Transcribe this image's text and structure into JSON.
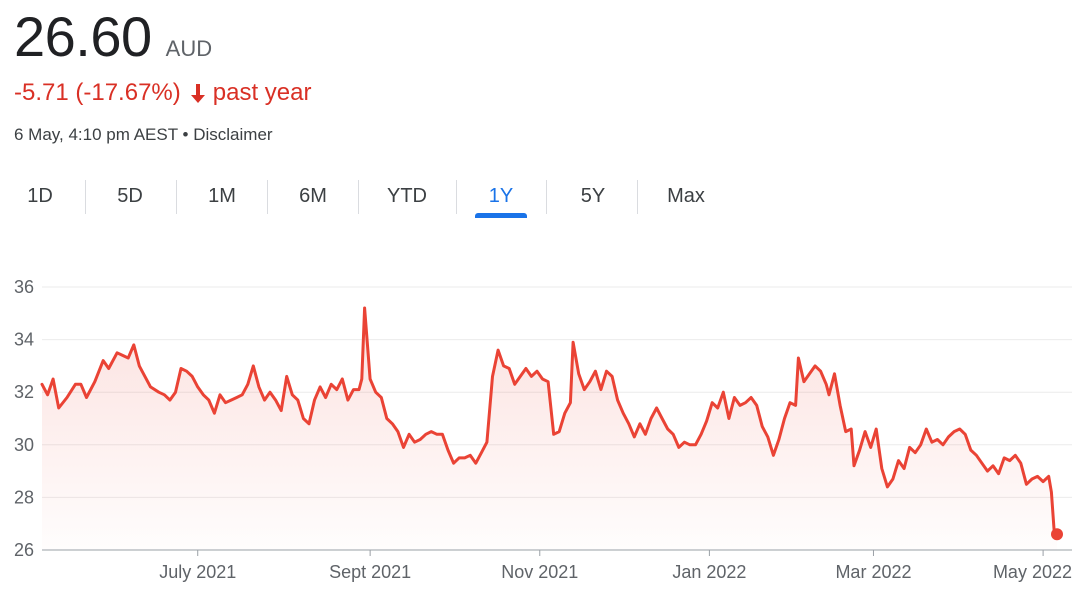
{
  "quote": {
    "price": "26.60",
    "currency": "AUD",
    "change": "-5.71 (-17.67%)",
    "change_period": "past year",
    "timestamp": "6 May, 4:10 pm AEST",
    "separator": "•",
    "disclaimer": "Disclaimer"
  },
  "colors": {
    "negative": "#d93025",
    "line": "#ea4335",
    "active_tab": "#1a73e8",
    "text": "#202124",
    "muted": "#5f6368"
  },
  "tabs": [
    {
      "label": "1D",
      "active": false
    },
    {
      "label": "5D",
      "active": false
    },
    {
      "label": "1M",
      "active": false
    },
    {
      "label": "6M",
      "active": false
    },
    {
      "label": "YTD",
      "active": false
    },
    {
      "label": "1Y",
      "active": true
    },
    {
      "label": "5Y",
      "active": false
    },
    {
      "label": "Max",
      "active": false
    }
  ],
  "icons": {
    "change_arrow": "arrow-down-icon"
  },
  "chart_data": {
    "type": "area",
    "title": "",
    "xlabel": "",
    "ylabel": "",
    "ylim": [
      26,
      36
    ],
    "yticks": [
      26,
      28,
      30,
      32,
      34,
      36
    ],
    "xlim": [
      "2021-05-06",
      "2022-05-06"
    ],
    "xticks": [
      {
        "date": "2021-07-01",
        "label": "July 2021"
      },
      {
        "date": "2021-09-01",
        "label": "Sept 2021"
      },
      {
        "date": "2021-11-01",
        "label": "Nov 2021"
      },
      {
        "date": "2022-01-01",
        "label": "Jan 2022"
      },
      {
        "date": "2022-03-01",
        "label": "Mar 2022"
      },
      {
        "date": "2022-05-01",
        "label": "May 2022"
      }
    ],
    "grid": true,
    "series": [
      {
        "points": [
          [
            "2021-05-06",
            32.3
          ],
          [
            "2021-05-08",
            31.9
          ],
          [
            "2021-05-10",
            32.5
          ],
          [
            "2021-05-12",
            31.4
          ],
          [
            "2021-05-15",
            31.8
          ],
          [
            "2021-05-18",
            32.3
          ],
          [
            "2021-05-20",
            32.3
          ],
          [
            "2021-05-22",
            31.8
          ],
          [
            "2021-05-25",
            32.4
          ],
          [
            "2021-05-28",
            33.2
          ],
          [
            "2021-05-30",
            32.9
          ],
          [
            "2021-06-02",
            33.5
          ],
          [
            "2021-06-04",
            33.4
          ],
          [
            "2021-06-06",
            33.3
          ],
          [
            "2021-06-08",
            33.8
          ],
          [
            "2021-06-10",
            33.0
          ],
          [
            "2021-06-12",
            32.6
          ],
          [
            "2021-06-14",
            32.2
          ],
          [
            "2021-06-17",
            32.0
          ],
          [
            "2021-06-19",
            31.9
          ],
          [
            "2021-06-21",
            31.7
          ],
          [
            "2021-06-23",
            32.0
          ],
          [
            "2021-06-25",
            32.9
          ],
          [
            "2021-06-27",
            32.8
          ],
          [
            "2021-06-29",
            32.6
          ],
          [
            "2021-07-01",
            32.2
          ],
          [
            "2021-07-03",
            31.9
          ],
          [
            "2021-07-05",
            31.7
          ],
          [
            "2021-07-07",
            31.2
          ],
          [
            "2021-07-09",
            31.9
          ],
          [
            "2021-07-11",
            31.6
          ],
          [
            "2021-07-13",
            31.7
          ],
          [
            "2021-07-15",
            31.8
          ],
          [
            "2021-07-17",
            31.9
          ],
          [
            "2021-07-19",
            32.3
          ],
          [
            "2021-07-21",
            33.0
          ],
          [
            "2021-07-23",
            32.2
          ],
          [
            "2021-07-25",
            31.7
          ],
          [
            "2021-07-27",
            32.0
          ],
          [
            "2021-07-29",
            31.7
          ],
          [
            "2021-07-31",
            31.3
          ],
          [
            "2021-08-02",
            32.6
          ],
          [
            "2021-08-04",
            31.9
          ],
          [
            "2021-08-06",
            31.7
          ],
          [
            "2021-08-08",
            31.0
          ],
          [
            "2021-08-10",
            30.8
          ],
          [
            "2021-08-12",
            31.7
          ],
          [
            "2021-08-14",
            32.2
          ],
          [
            "2021-08-16",
            31.8
          ],
          [
            "2021-08-18",
            32.3
          ],
          [
            "2021-08-20",
            32.1
          ],
          [
            "2021-08-22",
            32.5
          ],
          [
            "2021-08-24",
            31.7
          ],
          [
            "2021-08-26",
            32.1
          ],
          [
            "2021-08-28",
            32.1
          ],
          [
            "2021-08-29",
            32.5
          ],
          [
            "2021-08-30",
            35.2
          ],
          [
            "2021-09-01",
            32.5
          ],
          [
            "2021-09-03",
            32.0
          ],
          [
            "2021-09-05",
            31.8
          ],
          [
            "2021-09-07",
            31.0
          ],
          [
            "2021-09-09",
            30.8
          ],
          [
            "2021-09-11",
            30.5
          ],
          [
            "2021-09-13",
            29.9
          ],
          [
            "2021-09-15",
            30.4
          ],
          [
            "2021-09-17",
            30.1
          ],
          [
            "2021-09-19",
            30.2
          ],
          [
            "2021-09-21",
            30.4
          ],
          [
            "2021-09-23",
            30.5
          ],
          [
            "2021-09-25",
            30.4
          ],
          [
            "2021-09-27",
            30.4
          ],
          [
            "2021-09-29",
            29.8
          ],
          [
            "2021-10-01",
            29.3
          ],
          [
            "2021-10-03",
            29.5
          ],
          [
            "2021-10-05",
            29.5
          ],
          [
            "2021-10-07",
            29.6
          ],
          [
            "2021-10-09",
            29.3
          ],
          [
            "2021-10-11",
            29.7
          ],
          [
            "2021-10-13",
            30.1
          ],
          [
            "2021-10-15",
            32.6
          ],
          [
            "2021-10-17",
            33.6
          ],
          [
            "2021-10-19",
            33.0
          ],
          [
            "2021-10-21",
            32.9
          ],
          [
            "2021-10-23",
            32.3
          ],
          [
            "2021-10-25",
            32.6
          ],
          [
            "2021-10-27",
            32.9
          ],
          [
            "2021-10-29",
            32.6
          ],
          [
            "2021-10-31",
            32.8
          ],
          [
            "2021-11-02",
            32.5
          ],
          [
            "2021-11-04",
            32.4
          ],
          [
            "2021-11-06",
            30.4
          ],
          [
            "2021-11-08",
            30.5
          ],
          [
            "2021-11-10",
            31.2
          ],
          [
            "2021-11-12",
            31.6
          ],
          [
            "2021-11-13",
            33.9
          ],
          [
            "2021-11-15",
            32.7
          ],
          [
            "2021-11-17",
            32.1
          ],
          [
            "2021-11-19",
            32.4
          ],
          [
            "2021-11-21",
            32.8
          ],
          [
            "2021-11-23",
            32.1
          ],
          [
            "2021-11-25",
            32.8
          ],
          [
            "2021-11-27",
            32.6
          ],
          [
            "2021-11-29",
            31.7
          ],
          [
            "2021-12-01",
            31.2
          ],
          [
            "2021-12-03",
            30.8
          ],
          [
            "2021-12-05",
            30.3
          ],
          [
            "2021-12-07",
            30.8
          ],
          [
            "2021-12-09",
            30.4
          ],
          [
            "2021-12-11",
            31.0
          ],
          [
            "2021-12-13",
            31.4
          ],
          [
            "2021-12-15",
            31.0
          ],
          [
            "2021-12-17",
            30.6
          ],
          [
            "2021-12-19",
            30.4
          ],
          [
            "2021-12-21",
            29.9
          ],
          [
            "2021-12-23",
            30.1
          ],
          [
            "2021-12-25",
            30.0
          ],
          [
            "2021-12-27",
            30.0
          ],
          [
            "2021-12-29",
            30.4
          ],
          [
            "2021-12-31",
            30.9
          ],
          [
            "2022-01-02",
            31.6
          ],
          [
            "2022-01-04",
            31.4
          ],
          [
            "2022-01-06",
            32.0
          ],
          [
            "2022-01-08",
            31.0
          ],
          [
            "2022-01-10",
            31.8
          ],
          [
            "2022-01-12",
            31.5
          ],
          [
            "2022-01-14",
            31.6
          ],
          [
            "2022-01-16",
            31.8
          ],
          [
            "2022-01-18",
            31.5
          ],
          [
            "2022-01-20",
            30.7
          ],
          [
            "2022-01-22",
            30.3
          ],
          [
            "2022-01-24",
            29.6
          ],
          [
            "2022-01-26",
            30.2
          ],
          [
            "2022-01-28",
            31.0
          ],
          [
            "2022-01-30",
            31.6
          ],
          [
            "2022-02-01",
            31.5
          ],
          [
            "2022-02-02",
            33.3
          ],
          [
            "2022-02-04",
            32.4
          ],
          [
            "2022-02-06",
            32.7
          ],
          [
            "2022-02-08",
            33.0
          ],
          [
            "2022-02-10",
            32.8
          ],
          [
            "2022-02-12",
            32.3
          ],
          [
            "2022-02-13",
            31.9
          ],
          [
            "2022-02-15",
            32.7
          ],
          [
            "2022-02-17",
            31.5
          ],
          [
            "2022-02-19",
            30.5
          ],
          [
            "2022-02-21",
            30.6
          ],
          [
            "2022-02-22",
            29.2
          ],
          [
            "2022-02-24",
            29.8
          ],
          [
            "2022-02-26",
            30.5
          ],
          [
            "2022-02-28",
            29.9
          ],
          [
            "2022-03-02",
            30.6
          ],
          [
            "2022-03-04",
            29.1
          ],
          [
            "2022-03-06",
            28.4
          ],
          [
            "2022-03-08",
            28.7
          ],
          [
            "2022-03-10",
            29.4
          ],
          [
            "2022-03-12",
            29.1
          ],
          [
            "2022-03-14",
            29.9
          ],
          [
            "2022-03-16",
            29.7
          ],
          [
            "2022-03-18",
            30.0
          ],
          [
            "2022-03-20",
            30.6
          ],
          [
            "2022-03-22",
            30.1
          ],
          [
            "2022-03-24",
            30.2
          ],
          [
            "2022-03-26",
            30.0
          ],
          [
            "2022-03-28",
            30.3
          ],
          [
            "2022-03-30",
            30.5
          ],
          [
            "2022-04-01",
            30.6
          ],
          [
            "2022-04-03",
            30.4
          ],
          [
            "2022-04-05",
            29.8
          ],
          [
            "2022-04-07",
            29.6
          ],
          [
            "2022-04-09",
            29.3
          ],
          [
            "2022-04-11",
            29.0
          ],
          [
            "2022-04-13",
            29.2
          ],
          [
            "2022-04-15",
            28.9
          ],
          [
            "2022-04-17",
            29.5
          ],
          [
            "2022-04-19",
            29.4
          ],
          [
            "2022-04-21",
            29.6
          ],
          [
            "2022-04-23",
            29.3
          ],
          [
            "2022-04-25",
            28.5
          ],
          [
            "2022-04-27",
            28.7
          ],
          [
            "2022-04-29",
            28.8
          ],
          [
            "2022-05-01",
            28.6
          ],
          [
            "2022-05-03",
            28.8
          ],
          [
            "2022-05-04",
            28.2
          ],
          [
            "2022-05-05",
            26.7
          ],
          [
            "2022-05-06",
            26.6
          ]
        ]
      }
    ]
  }
}
